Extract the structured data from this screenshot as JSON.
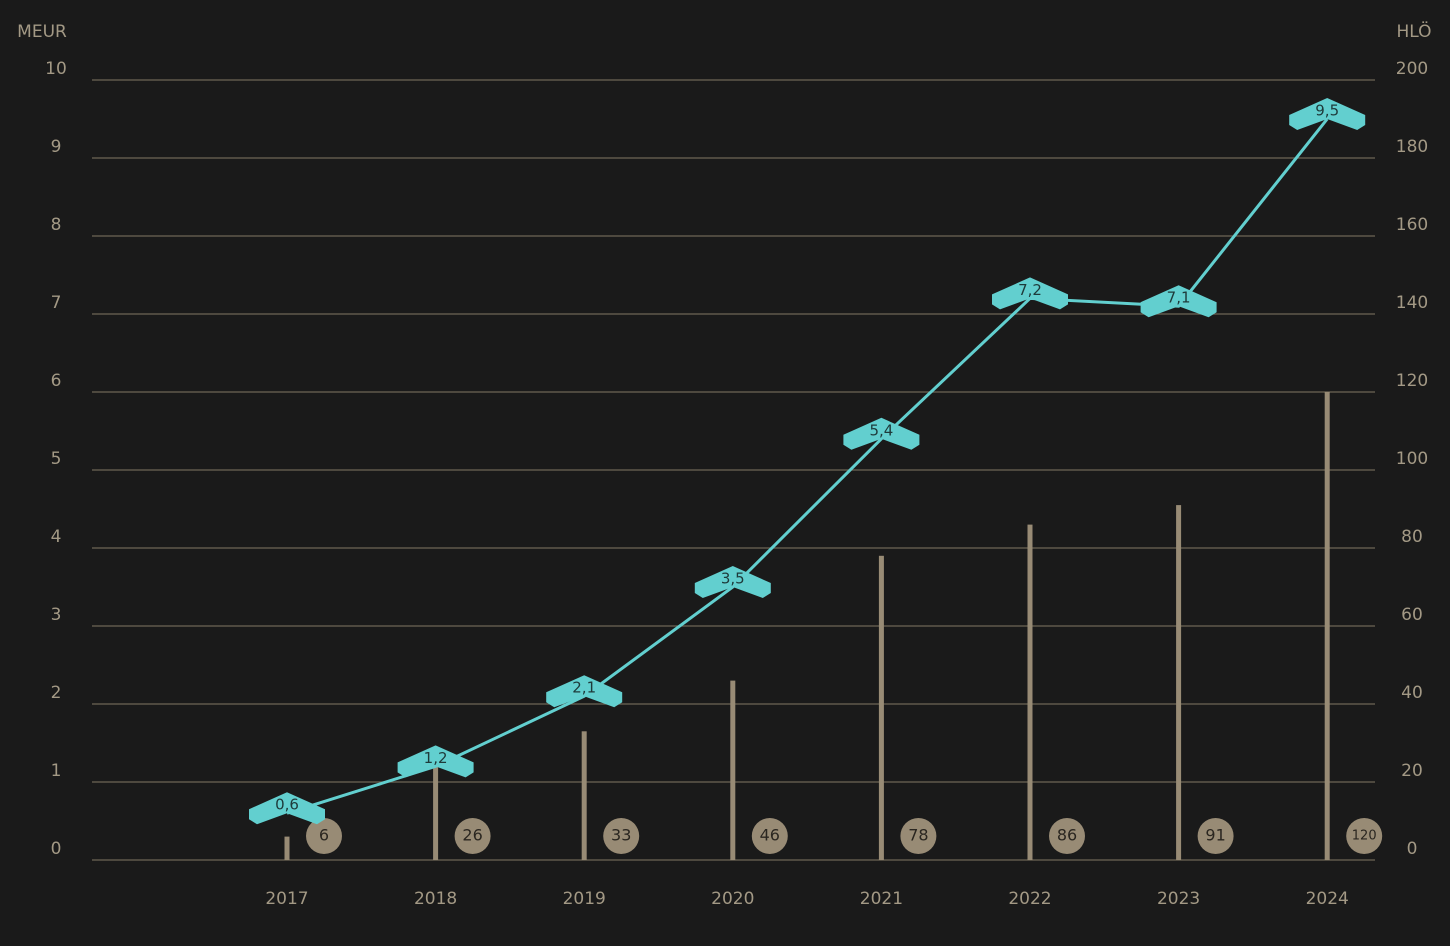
{
  "chart_data": {
    "type": "combo",
    "ylabel": "MEUR",
    "y2label": "HLÖ",
    "categories": [
      "2017",
      "2018",
      "2019",
      "2020",
      "2021",
      "2022",
      "2023",
      "2024"
    ],
    "series": [
      {
        "type": "line",
        "color": "#62cfcf",
        "values": [
          0.6,
          1.2,
          2.1,
          3.5,
          5.4,
          7.2,
          7.1,
          9.5
        ],
        "value_labels": [
          "0,6",
          "1,2",
          "2,1",
          "3,5",
          "5,4",
          "7,2",
          "7,1",
          "9,5"
        ]
      },
      {
        "type": "bar",
        "axis": "y2",
        "color": "#988b75",
        "values": [
          6,
          26,
          33,
          46,
          78,
          86,
          91,
          120
        ]
      }
    ],
    "ylim": [
      0,
      10
    ],
    "yticks": [
      0,
      1,
      2,
      3,
      4,
      5,
      6,
      7,
      8,
      9,
      10
    ],
    "y2lim": [
      0,
      200
    ],
    "y2ticks": [
      0,
      20,
      40,
      60,
      80,
      100,
      120,
      140,
      160,
      180,
      200
    ],
    "grid": true
  }
}
